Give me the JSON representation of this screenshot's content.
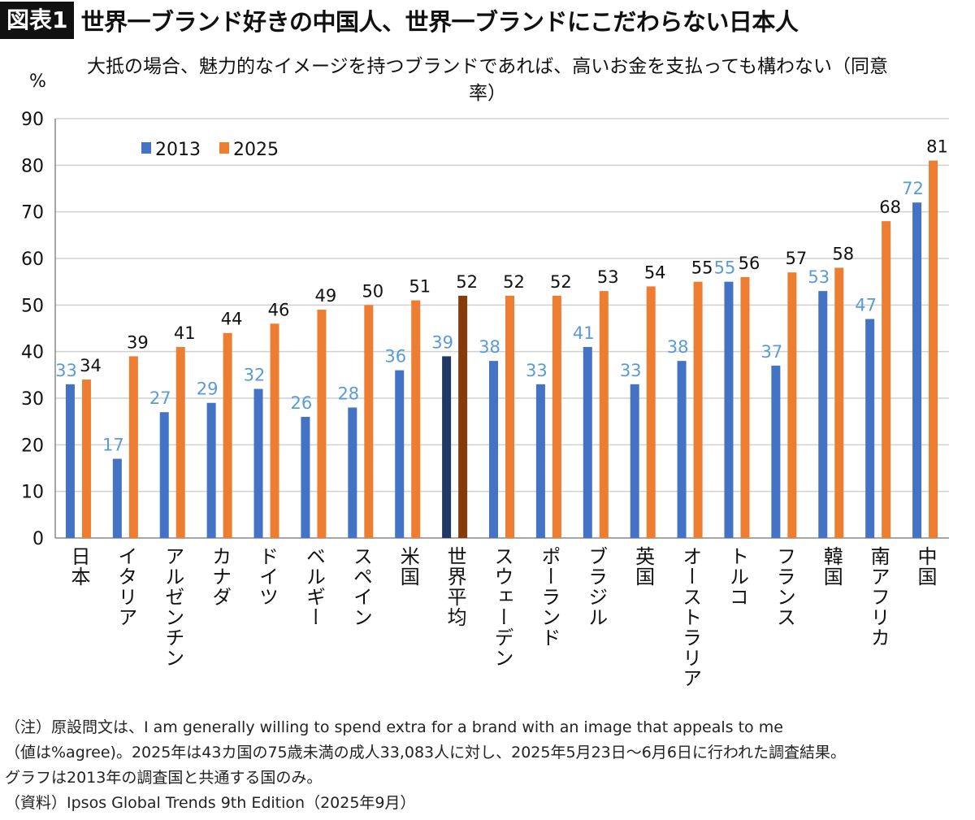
{
  "header": {
    "fig_tag": "図表1",
    "title": "世界一ブランド好きの中国人、世界一ブランドにこだわらない日本人"
  },
  "chart_data": {
    "type": "bar",
    "title": "大抵の場合、魅力的なイメージを持つブランドであれば、高いお金を支払っても構わない（同意率）",
    "ylabel": "%",
    "ylim": [
      0,
      90
    ],
    "yticks": [
      0,
      10,
      20,
      30,
      40,
      50,
      60,
      70,
      80,
      90
    ],
    "grid": true,
    "legend_position": "top-left",
    "categories": [
      "日本",
      "イタリア",
      "アルゼンチン",
      "カナダ",
      "ドイツ",
      "ベルギー",
      "スペイン",
      "米国",
      "世界平均",
      "スウェーデン",
      "ポーランド",
      "ブラジル",
      "英国",
      "オーストラリア",
      "トルコ",
      "フランス",
      "韓国",
      "南アフリカ",
      "中国"
    ],
    "highlight_category": "世界平均",
    "series": [
      {
        "name": "2013",
        "color": "#4472C4",
        "highlight_color": "#1F3864",
        "label_color": "#5B9BD5",
        "values": [
          33,
          17,
          27,
          29,
          32,
          26,
          28,
          36,
          39,
          38,
          33,
          41,
          33,
          38,
          55,
          37,
          53,
          47,
          72
        ]
      },
      {
        "name": "2025",
        "color": "#ED7D31",
        "highlight_color": "#843C0C",
        "label_color": "#111111",
        "values": [
          34,
          39,
          41,
          44,
          46,
          49,
          50,
          51,
          52,
          52,
          52,
          53,
          54,
          55,
          56,
          57,
          58,
          68,
          81
        ]
      }
    ]
  },
  "notes": [
    "（注）原設問文は、I am generally willing to spend extra for a brand with an image that appeals to me",
    "（値は%agree)。2025年は43カ国の75歳未満の成人33,083人に対し、2025年5月23日～6月6日に行われた調査結果。",
    "グラフは2013年の調査国と共通する国のみ。",
    "（資料）Ipsos Global Trends 9th Edition（2025年9月）"
  ]
}
